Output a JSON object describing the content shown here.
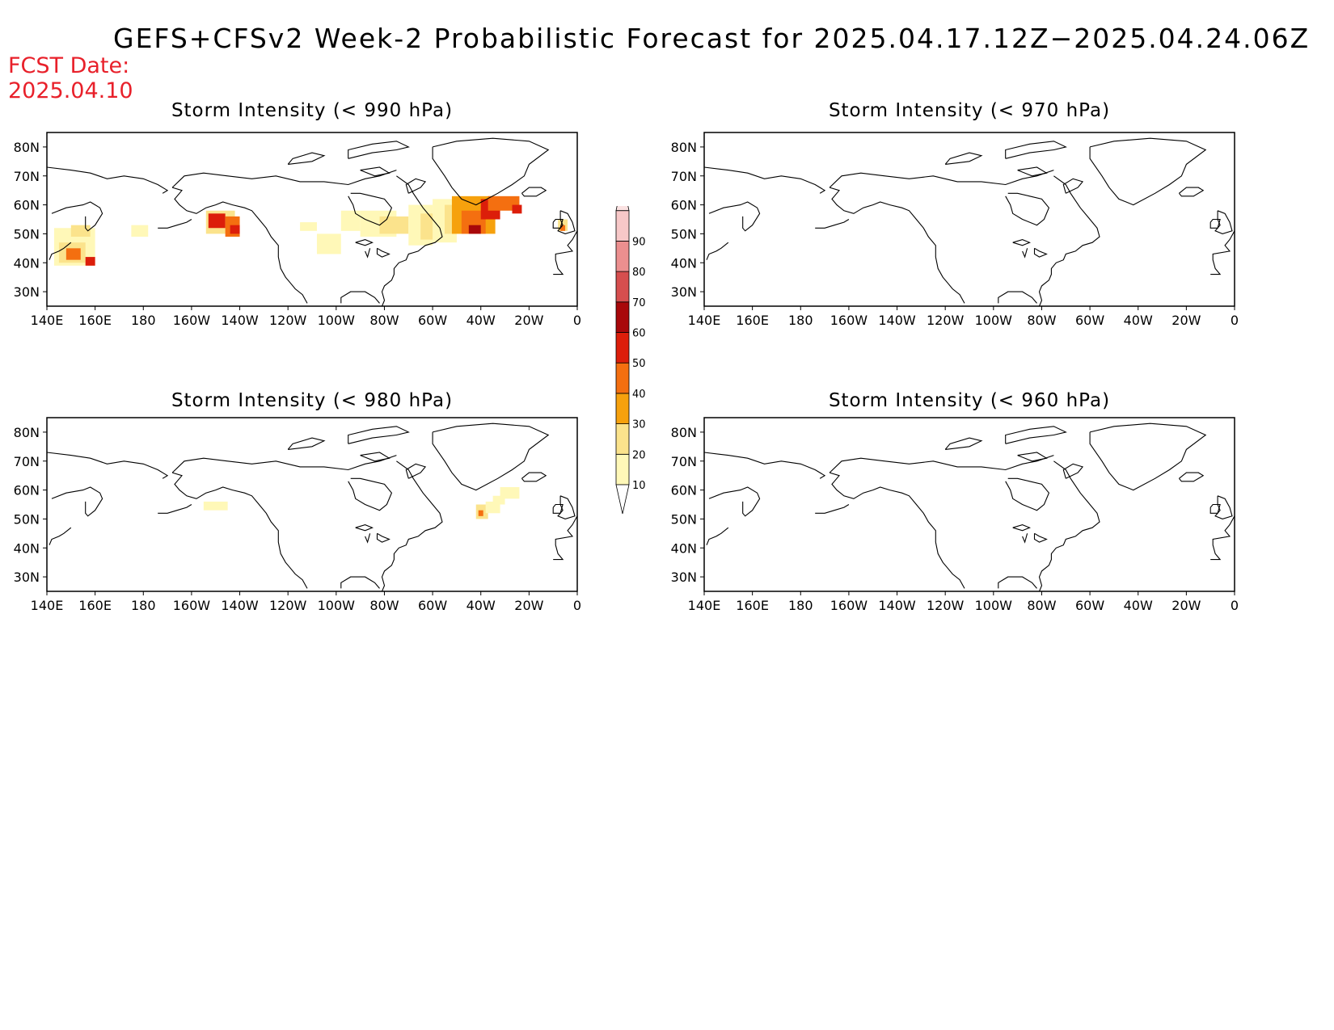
{
  "title": "GEFS+CFSv2 Week-2 Probabilistic Forecast for 2025.04.17.12Z−2025.04.24.06Z",
  "fcst_date_label": "FCST Date:",
  "fcst_date_value": "2025.04.10",
  "panels": [
    {
      "title": "Storm Intensity (< 990 hPa)",
      "threshold_hpa": 990
    },
    {
      "title": "Storm Intensity (< 970 hPa)",
      "threshold_hpa": 970
    },
    {
      "title": "Storm Intensity (< 980 hPa)",
      "threshold_hpa": 980
    },
    {
      "title": "Storm Intensity (< 960 hPa)",
      "threshold_hpa": 960
    }
  ],
  "lat_labels": [
    "80N",
    "70N",
    "60N",
    "50N",
    "40N",
    "30N"
  ],
  "lon_labels": [
    "140E",
    "160E",
    "180",
    "160W",
    "140W",
    "120W",
    "100W",
    "80W",
    "60W",
    "40W",
    "20W",
    "0"
  ],
  "colorbar": {
    "levels": [
      "10",
      "20",
      "30",
      "40",
      "50",
      "60",
      "70",
      "80",
      "90"
    ],
    "colors": [
      "#fff8b8",
      "#fbe38c",
      "#f6a10d",
      "#f46f10",
      "#dc1e0a",
      "#a8080a",
      "#d64e4e",
      "#ec8f8f",
      "#f7c8c8",
      "#fbe2e2"
    ]
  }
}
